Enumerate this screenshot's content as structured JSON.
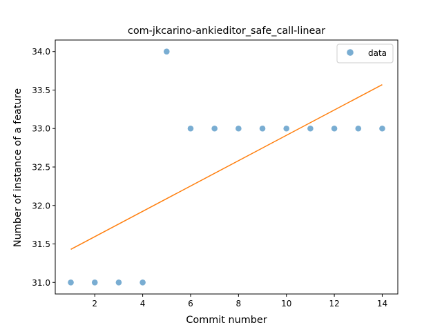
{
  "chart_data": {
    "type": "scatter",
    "title": "com-jkcarino-ankieditor_safe_call-linear",
    "xlabel": "Commit number",
    "ylabel": "Number of instance of a feature",
    "xlim": [
      0.35,
      14.65
    ],
    "ylim": [
      30.85,
      34.15
    ],
    "xticks": [
      2,
      4,
      6,
      8,
      10,
      12,
      14
    ],
    "xtick_labels": [
      "2",
      "4",
      "6",
      "8",
      "10",
      "12",
      "14"
    ],
    "yticks": [
      31.0,
      31.5,
      32.0,
      32.5,
      33.0,
      33.5,
      34.0
    ],
    "ytick_labels": [
      "31.0",
      "31.5",
      "32.0",
      "32.5",
      "33.0",
      "33.5",
      "34.0"
    ],
    "grid": false,
    "legend": {
      "position": "top-right",
      "entries": [
        "data"
      ]
    },
    "series": [
      {
        "name": "data",
        "kind": "scatter",
        "color": "#1f77b4",
        "alpha": 0.6,
        "x": [
          1,
          2,
          3,
          4,
          5,
          6,
          7,
          8,
          9,
          10,
          11,
          12,
          13,
          14
        ],
        "y": [
          31,
          31,
          31,
          31,
          34,
          33,
          33,
          33,
          33,
          33,
          33,
          33,
          33,
          33
        ]
      },
      {
        "kind": "line",
        "color": "#ff7f0e",
        "x": [
          1,
          14
        ],
        "y": [
          31.43,
          33.57
        ]
      }
    ]
  }
}
